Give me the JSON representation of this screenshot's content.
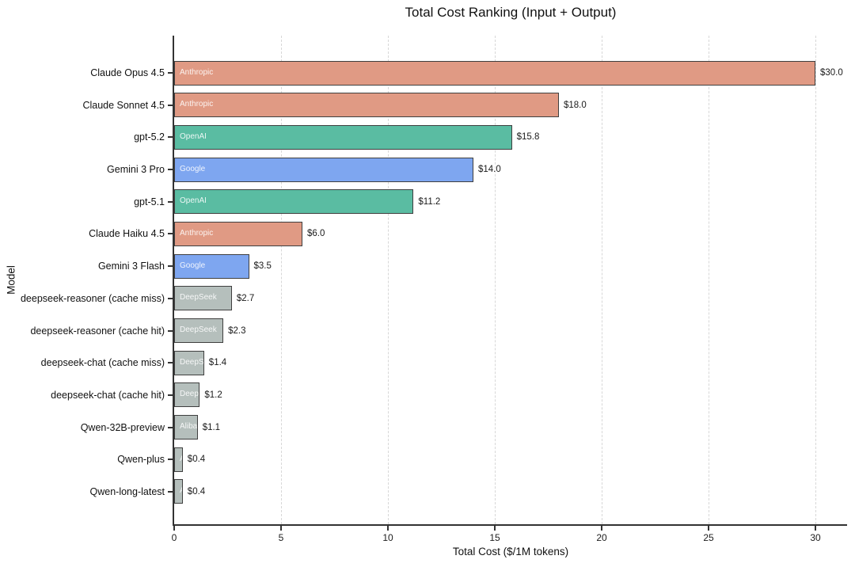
{
  "chart_data": {
    "type": "bar",
    "orientation": "horizontal",
    "title": "Total Cost Ranking (Input + Output)",
    "xlabel": "Total Cost ($/1M tokens)",
    "ylabel": "Model",
    "xlim": [
      0,
      31.4
    ],
    "xticks": [
      0,
      5,
      10,
      15,
      20,
      25,
      30
    ],
    "grid": "vertical-dashed",
    "legend_position": "none",
    "bars": [
      {
        "model": "Claude Opus 4.5",
        "vendor": "Anthropic",
        "value": 30.0,
        "value_label": "$30.0"
      },
      {
        "model": "Claude Sonnet 4.5",
        "vendor": "Anthropic",
        "value": 18.0,
        "value_label": "$18.0"
      },
      {
        "model": "gpt-5.2",
        "vendor": "OpenAI",
        "value": 15.8,
        "value_label": "$15.8"
      },
      {
        "model": "Gemini 3 Pro",
        "vendor": "Google",
        "value": 14.0,
        "value_label": "$14.0"
      },
      {
        "model": "gpt-5.1",
        "vendor": "OpenAI",
        "value": 11.2,
        "value_label": "$11.2"
      },
      {
        "model": "Claude Haiku 4.5",
        "vendor": "Anthropic",
        "value": 6.0,
        "value_label": "$6.0"
      },
      {
        "model": "Gemini 3 Flash",
        "vendor": "Google",
        "value": 3.5,
        "value_label": "$3.5"
      },
      {
        "model": "deepseek-reasoner (cache miss)",
        "vendor": "DeepSeek",
        "value": 2.7,
        "value_label": "$2.7"
      },
      {
        "model": "deepseek-reasoner (cache hit)",
        "vendor": "DeepSeek",
        "value": 2.3,
        "value_label": "$2.3"
      },
      {
        "model": "deepseek-chat (cache miss)",
        "vendor": "DeepSeek",
        "value": 1.4,
        "value_label": "$1.4"
      },
      {
        "model": "deepseek-chat (cache hit)",
        "vendor": "DeepSeek",
        "value": 1.2,
        "value_label": "$1.2"
      },
      {
        "model": "Qwen-32B-preview",
        "vendor": "Alibaba",
        "value": 1.1,
        "value_label": "$1.1"
      },
      {
        "model": "Qwen-plus",
        "vendor": "Alibaba",
        "value": 0.4,
        "value_label": "$0.4"
      },
      {
        "model": "Qwen-long-latest",
        "vendor": "Alibaba",
        "value": 0.4,
        "value_label": "$0.4"
      }
    ],
    "vendor_colors": {
      "Anthropic": "#e09a84",
      "OpenAI": "#5abca2",
      "Google": "#7ea6f0",
      "DeepSeek": "#b5bfbc",
      "Alibaba": "#b5bfbc"
    },
    "style": {
      "bar_edge_color": "#3f3f3f",
      "axis_color": "#333333",
      "grid_color": "#d7d7d7",
      "text_color": "#111111",
      "vendor_text_color": "#f5f7f6",
      "background": "#ffffff"
    }
  }
}
